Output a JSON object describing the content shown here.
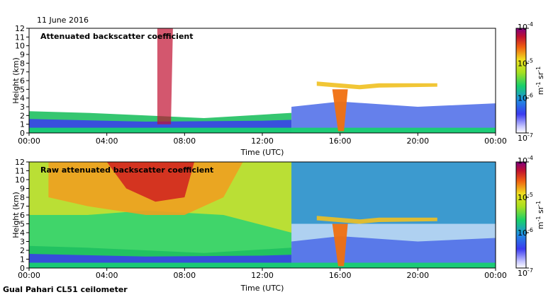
{
  "date_label": "11 June 2016",
  "footer": "Gual Pahari CL51 ceilometer",
  "chart_data": [
    {
      "type": "heatmap",
      "title": "Attenuated backscatter coefficient",
      "xlabel": "Time (UTC)",
      "ylabel": "Height (km)",
      "x_ticks": [
        "00:00",
        "04:00",
        "08:00",
        "12:00",
        "16:00",
        "20:00",
        "00:00"
      ],
      "x_range_hours": [
        0,
        24
      ],
      "y_ticks": [
        0,
        1,
        2,
        3,
        4,
        5,
        6,
        7,
        8,
        9,
        10,
        11,
        12
      ],
      "ylim": [
        0,
        12
      ],
      "colorbar": {
        "scale": "log",
        "range": [
          1e-07,
          0.0001
        ],
        "tick_labels": [
          "10^-7",
          "10^-6",
          "10^-5",
          "10^-4"
        ],
        "unit": "m^-1 sr^-1"
      }
    },
    {
      "type": "heatmap",
      "title": "Raw attenuated backscatter coefficient",
      "xlabel": "Time (UTC)",
      "ylabel": "Height (km)",
      "x_ticks": [
        "00:00",
        "04:00",
        "08:00",
        "12:00",
        "16:00",
        "20:00",
        "00:00"
      ],
      "x_range_hours": [
        0,
        24
      ],
      "y_ticks": [
        0,
        1,
        2,
        3,
        4,
        5,
        6,
        7,
        8,
        9,
        10,
        11,
        12
      ],
      "ylim": [
        0,
        12
      ],
      "colorbar": {
        "scale": "log",
        "range": [
          1e-07,
          0.0001
        ],
        "tick_labels": [
          "10^-7",
          "10^-6",
          "10^-5",
          "10^-4"
        ],
        "unit": "m^-1 sr^-1"
      }
    }
  ]
}
